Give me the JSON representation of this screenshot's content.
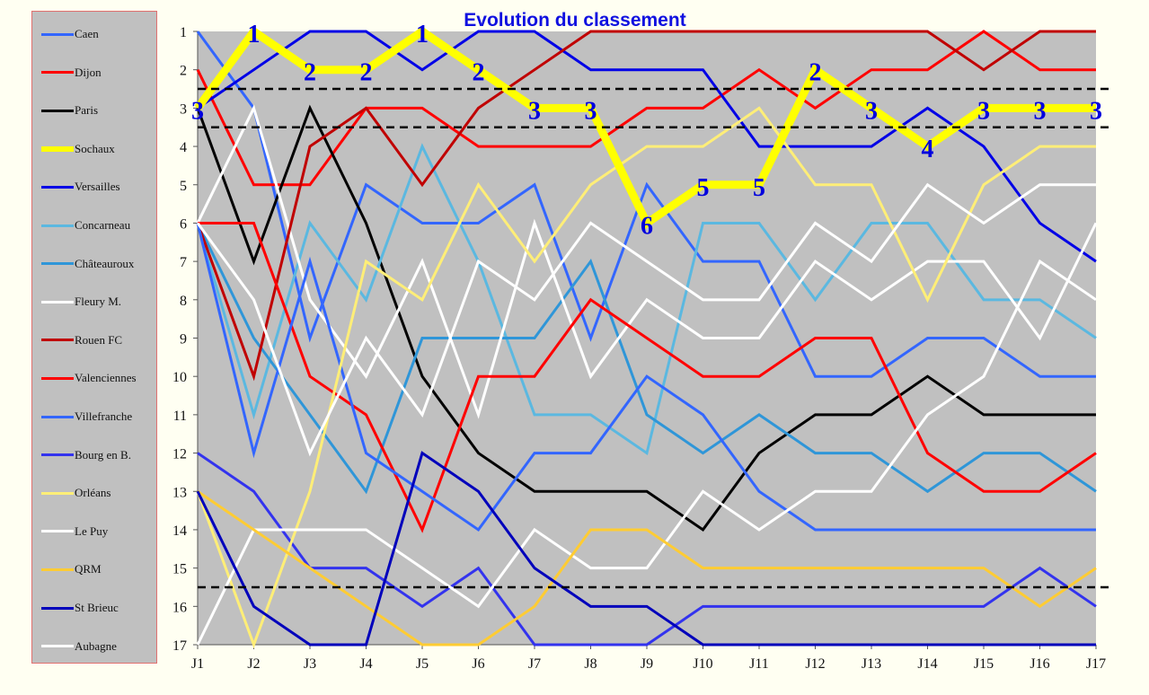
{
  "chart_data": {
    "type": "line",
    "title": "Evolution du classement",
    "xlabel": "",
    "ylabel": "",
    "ylim": [
      17,
      1
    ],
    "categories": [
      "J1",
      "J2",
      "J3",
      "J4",
      "J5",
      "J6",
      "J7",
      "J8",
      "J9",
      "J10",
      "J11",
      "J12",
      "J13",
      "J14",
      "J15",
      "J16",
      "J17"
    ],
    "y_ticks": [
      1,
      2,
      3,
      4,
      5,
      6,
      7,
      8,
      9,
      10,
      11,
      12,
      13,
      14,
      15,
      16,
      17
    ],
    "reference_lines": [
      2.5,
      3.5,
      15.5
    ],
    "highlight_series": "Sochaux",
    "legend_position": "left",
    "grid": false,
    "series": [
      {
        "name": "Caen",
        "color": "#3366ff",
        "width": 3,
        "values": [
          1,
          3,
          9,
          5,
          6,
          6,
          5,
          9,
          5,
          7,
          7,
          10,
          10,
          9,
          9,
          10,
          10
        ]
      },
      {
        "name": "Dijon",
        "color": "#ff0000",
        "width": 3,
        "values": [
          2,
          5,
          5,
          3,
          3,
          4,
          4,
          4,
          3,
          3,
          2,
          3,
          2,
          2,
          1,
          2,
          2
        ]
      },
      {
        "name": "Paris",
        "color": "#000000",
        "width": 3,
        "values": [
          3,
          7,
          3,
          6,
          10,
          12,
          13,
          13,
          13,
          14,
          12,
          11,
          11,
          10,
          11,
          11,
          11
        ]
      },
      {
        "name": "Sochaux",
        "color": "#ffff00",
        "width": 9,
        "values": [
          3,
          1,
          2,
          2,
          1,
          2,
          3,
          3,
          6,
          5,
          5,
          2,
          3,
          4,
          3,
          3,
          3
        ]
      },
      {
        "name": "Versailles",
        "color": "#0000e6",
        "width": 3,
        "values": [
          3,
          2,
          1,
          1,
          2,
          1,
          1,
          2,
          2,
          2,
          4,
          4,
          4,
          3,
          4,
          6,
          7
        ]
      },
      {
        "name": "Concarneau",
        "color": "#5bb8e0",
        "width": 3,
        "values": [
          6,
          11,
          6,
          8,
          4,
          7,
          11,
          11,
          12,
          6,
          6,
          8,
          6,
          6,
          8,
          8,
          9
        ]
      },
      {
        "name": "Châteauroux",
        "color": "#2f96d8",
        "width": 3,
        "values": [
          6,
          9,
          11,
          13,
          9,
          9,
          9,
          7,
          11,
          12,
          11,
          12,
          12,
          13,
          12,
          12,
          13
        ]
      },
      {
        "name": "Fleury M.",
        "color": "#ffffff",
        "width": 3,
        "values": [
          6,
          3,
          8,
          10,
          7,
          11,
          6,
          10,
          8,
          9,
          9,
          7,
          8,
          7,
          7,
          9,
          6
        ]
      },
      {
        "name": "Rouen FC",
        "color": "#c00000",
        "width": 3,
        "values": [
          6,
          10,
          4,
          3,
          5,
          3,
          2,
          1,
          1,
          1,
          1,
          1,
          1,
          1,
          2,
          1,
          1
        ]
      },
      {
        "name": "Valenciennes",
        "color": "#ff0000",
        "width": 3,
        "values": [
          6,
          6,
          10,
          11,
          14,
          10,
          10,
          8,
          9,
          10,
          10,
          9,
          9,
          12,
          13,
          13,
          12
        ]
      },
      {
        "name": "Villefranche",
        "color": "#3366ff",
        "width": 3,
        "values": [
          6,
          12,
          7,
          12,
          13,
          14,
          12,
          12,
          10,
          11,
          13,
          14,
          14,
          14,
          14,
          14,
          14
        ]
      },
      {
        "name": "Bourg en B.",
        "color": "#3333ee",
        "width": 3,
        "values": [
          12,
          13,
          15,
          15,
          16,
          15,
          17,
          17,
          17,
          16,
          16,
          16,
          16,
          16,
          16,
          15,
          16
        ]
      },
      {
        "name": "Orléans",
        "color": "#ffee77",
        "width": 3,
        "values": [
          13,
          17,
          13,
          7,
          8,
          5,
          7,
          5,
          4,
          4,
          3,
          5,
          5,
          8,
          5,
          4,
          4
        ]
      },
      {
        "name": "Le Puy",
        "color": "#ffffff",
        "width": 3,
        "values": [
          17,
          14,
          14,
          14,
          15,
          16,
          14,
          15,
          15,
          13,
          14,
          13,
          13,
          11,
          10,
          7,
          8
        ]
      },
      {
        "name": "QRM",
        "color": "#ffcc33",
        "width": 3,
        "values": [
          13,
          14,
          15,
          16,
          17,
          17,
          16,
          14,
          14,
          15,
          15,
          15,
          15,
          15,
          15,
          16,
          15
        ]
      },
      {
        "name": "St Brieuc",
        "color": "#0000bb",
        "width": 3,
        "values": [
          13,
          16,
          17,
          17,
          12,
          13,
          15,
          16,
          16,
          17,
          17,
          17,
          17,
          17,
          17,
          17,
          17
        ]
      },
      {
        "name": "Aubagne",
        "color": "#ffffff",
        "width": 3,
        "values": [
          6,
          8,
          12,
          9,
          11,
          7,
          8,
          6,
          7,
          8,
          8,
          6,
          7,
          5,
          6,
          5,
          5
        ]
      }
    ],
    "annotations": {
      "series": "Sochaux",
      "labels": [
        "3",
        "1",
        "2",
        "2",
        "1",
        "2",
        "3",
        "3",
        "6",
        "5",
        "5",
        "2",
        "3",
        "4",
        "3",
        "3",
        "3"
      ],
      "color": "#0000dd"
    }
  }
}
